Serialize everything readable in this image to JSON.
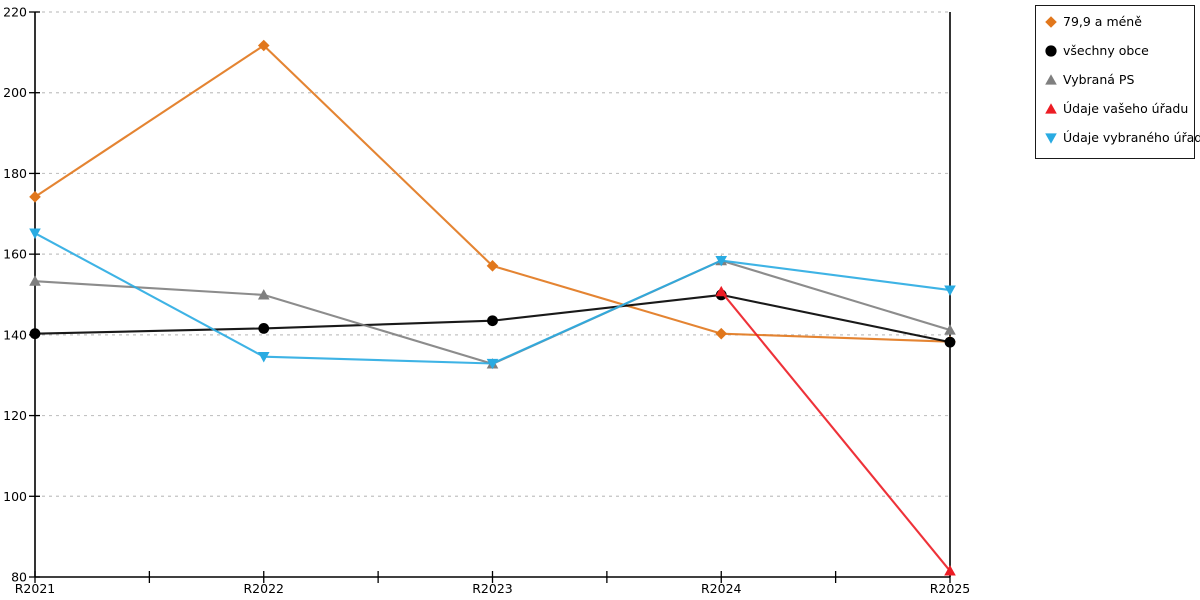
{
  "chart_data": {
    "type": "line",
    "title": "",
    "xlabel": "",
    "ylabel": "",
    "categories": [
      "R2021",
      "R2022",
      "R2023",
      "R2024",
      "R2025"
    ],
    "ylim": [
      80,
      220
    ],
    "ytick_step": 20,
    "grid": "horizontal dashed gridlines at every 20 units, 100 through 220",
    "legend_position": "outside top-right, boxed",
    "series": [
      {
        "name": "79,9 a méně",
        "marker": "diamond",
        "color": "#e1771c",
        "values": [
          174.2,
          211.7,
          157.1,
          140.3,
          138.3
        ]
      },
      {
        "name": "všechny obce",
        "marker": "circle",
        "color": "#000000",
        "values": [
          140.3,
          141.6,
          143.5,
          149.9,
          138.2
        ]
      },
      {
        "name": "Vybraná PS",
        "marker": "triangle-up",
        "color": "#7f7f7f",
        "values": [
          153.3,
          149.9,
          132.8,
          158.4,
          141.2
        ]
      },
      {
        "name": "Údaje vašeho úřadu",
        "marker": "triangle-up",
        "color": "#ec1c24",
        "values": [
          null,
          null,
          null,
          150.7,
          81.5
        ]
      },
      {
        "name": "Údaje vybraného úřadu",
        "marker": "triangle-down",
        "color": "#29abe2",
        "values": [
          165.2,
          134.6,
          132.9,
          158.4,
          151.1
        ]
      }
    ],
    "ytick_labels": [
      "80",
      "100",
      "120",
      "140",
      "160",
      "180",
      "200",
      "220"
    ]
  },
  "colors": {
    "background": "#ffffff",
    "axis": "#000000",
    "gridline": "#c3c3c3",
    "tick_label": "#000000",
    "legend_border": "#1a1a1a"
  }
}
